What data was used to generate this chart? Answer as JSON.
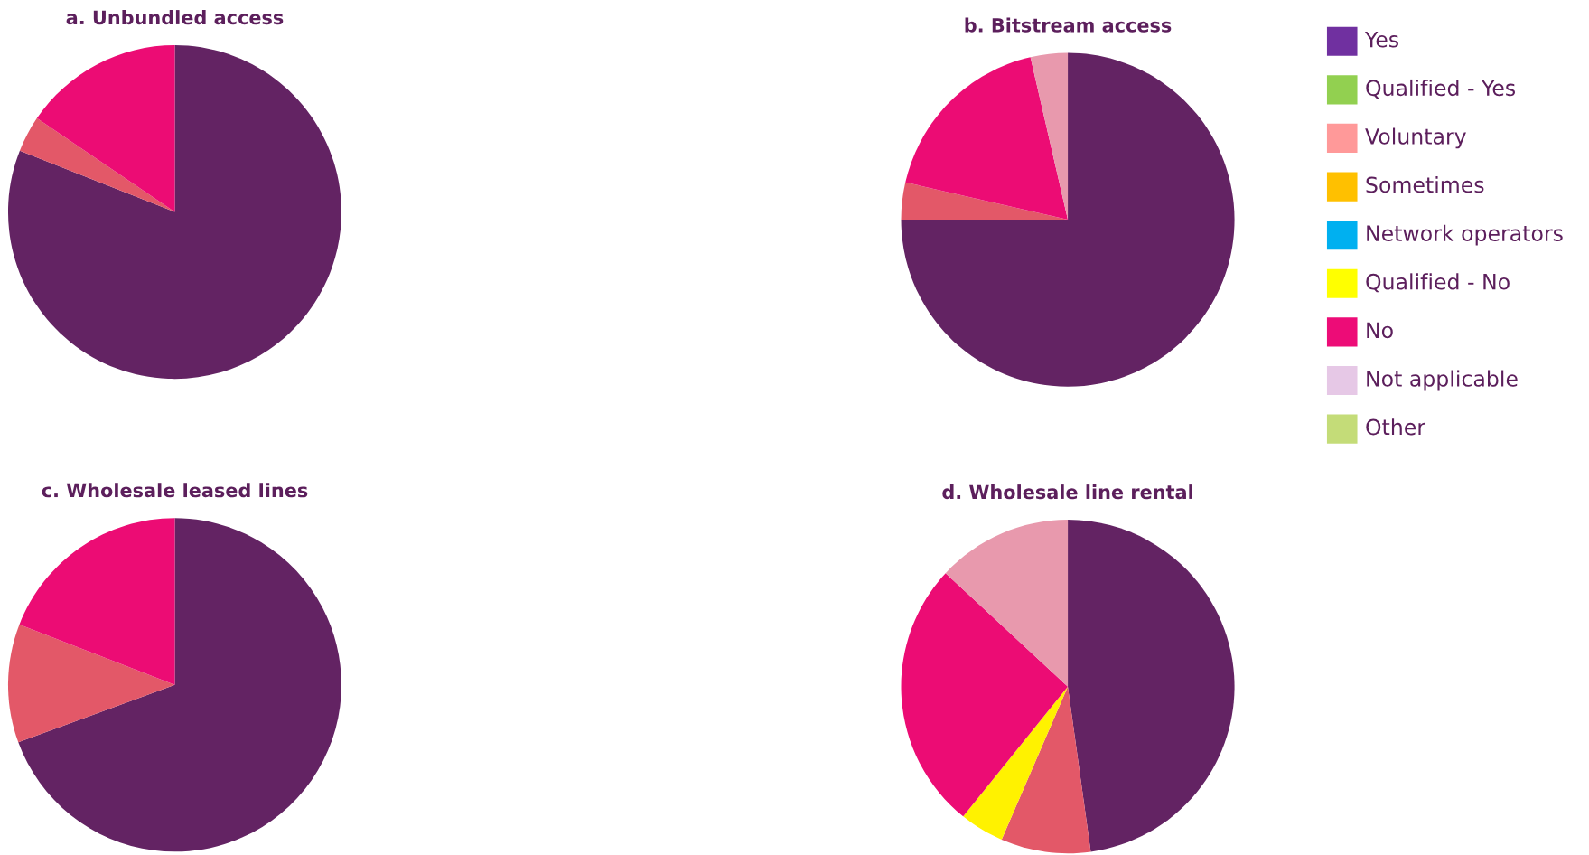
{
  "chart_data": [
    {
      "type": "pie",
      "title": "a. Unbundled access",
      "categories": [
        null,
        null,
        null
      ],
      "values": [
        81,
        3.5,
        15.5
      ],
      "colors": [
        "#632363",
        "#e35868",
        "#ec0c74"
      ]
    },
    {
      "type": "pie",
      "title": "b. Bitstream access",
      "categories": [
        null,
        null,
        null,
        null
      ],
      "values": [
        75,
        3.6,
        17.8,
        3.6
      ],
      "colors": [
        "#632363",
        "#e35868",
        "#ec0c74",
        "#e899ad"
      ]
    },
    {
      "type": "pie",
      "title": "c. Wholesale leased lines",
      "categories": [
        null,
        null,
        null
      ],
      "values": [
        69.4,
        11.5,
        19.1
      ],
      "colors": [
        "#632363",
        "#e35868",
        "#ec0c74"
      ]
    },
    {
      "type": "pie",
      "title": "d. Wholesale line rental",
      "categories": [
        null,
        null,
        null,
        null,
        null
      ],
      "values": [
        47.8,
        8.7,
        4.3,
        26.1,
        13.1
      ],
      "colors": [
        "#632363",
        "#e35868",
        "#fff200",
        "#ec0c74",
        "#e899ad"
      ]
    },
    {
      "type": "other",
      "categories": [
        "Yes",
        "Qualified - Yes",
        "Voluntary",
        "Sometimes",
        "Network operators",
        "Qualified - No",
        "No",
        "Not applicable",
        "Other"
      ],
      "colors": [
        "#7030a0",
        "#92d050",
        "#ff9999",
        "#ffc000",
        "#00b0f0",
        "#ffff00",
        "#ed0c77",
        "#e6c8e6",
        "#c4dc78"
      ]
    }
  ]
}
